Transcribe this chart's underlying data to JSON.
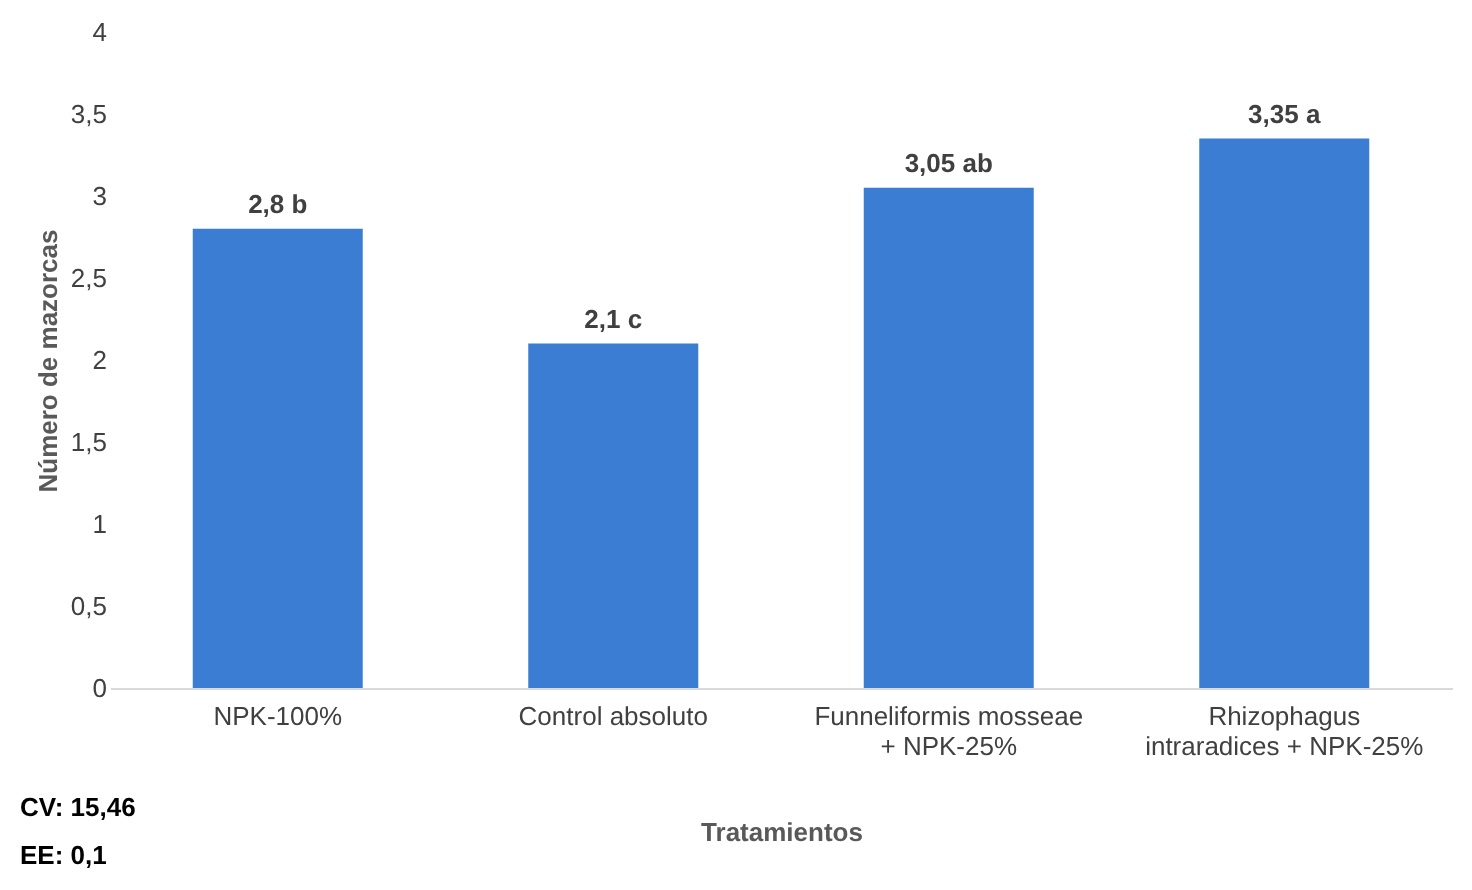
{
  "chart_data": {
    "type": "bar",
    "xlabel": "Tratamientos",
    "ylabel": "Número de mazorcas",
    "categories": [
      "NPK-100%",
      "Control absoluto",
      "Funneliformis mosseae + NPK-25%",
      "Rhizophagus intraradices + NPK-25%"
    ],
    "values": [
      2.8,
      2.1,
      3.05,
      3.35
    ],
    "value_labels": [
      "2,8 b",
      "2,1 c",
      "3,05 ab",
      "3,35 a"
    ],
    "color": "#3b7dd3",
    "ylim": [
      0,
      4
    ],
    "yticks": [
      0,
      {
        "value": 0.5,
        "label": "0,5"
      },
      1,
      {
        "value": 1.5,
        "label": "1,5"
      },
      2,
      {
        "value": 2.5,
        "label": "2,5"
      },
      3,
      {
        "value": 3.5,
        "label": "3,5"
      },
      4
    ],
    "grid": false,
    "annotations": [
      "CV: 15,46",
      "EE: 0,1"
    ]
  }
}
